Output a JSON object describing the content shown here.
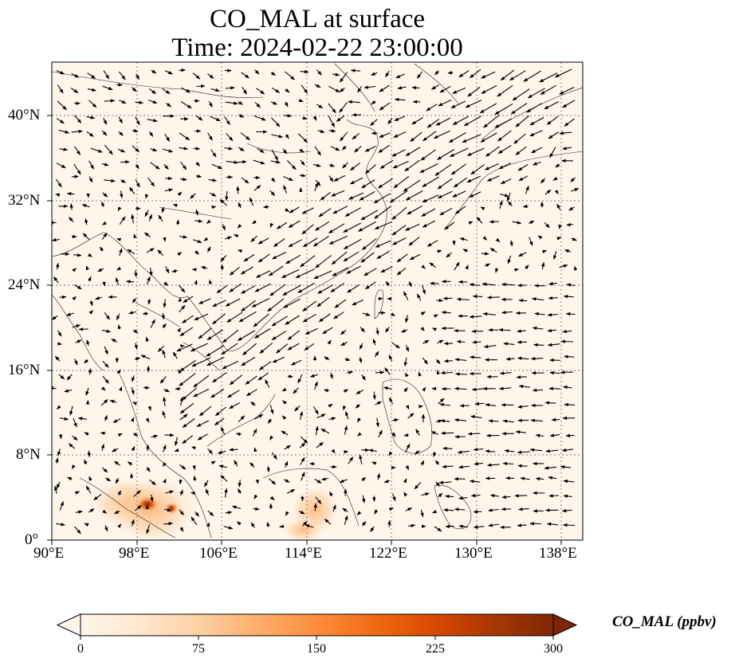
{
  "title": {
    "line1": "CO_MAL at surface",
    "line2": "Time: 2024-02-22 23:00:00"
  },
  "map": {
    "lon_range": [
      90,
      140
    ],
    "lat_range": [
      0,
      45
    ],
    "lon_ticks": [
      "90°E",
      "98°E",
      "106°E",
      "114°E",
      "122°E",
      "130°E",
      "138°E"
    ],
    "lat_ticks": [
      "0°",
      "8°N",
      "16°N",
      "24°N",
      "32°N",
      "40°N"
    ],
    "gridlines": true,
    "background_color": "#fff5eb",
    "field_variable": "CO_MAL",
    "vector_field": "surface wind arrows"
  },
  "colorbar": {
    "label": "CO_MAL (ppbv)",
    "min": 0,
    "max": 300,
    "ticks": [
      "0",
      "75",
      "150",
      "225",
      "300"
    ],
    "extend": "both",
    "colormap": [
      "#fff5eb",
      "#fee6ce",
      "#fdd0a2",
      "#fdae6b",
      "#fd8d3c",
      "#f16913",
      "#d94801",
      "#a63603",
      "#7f2704"
    ]
  }
}
